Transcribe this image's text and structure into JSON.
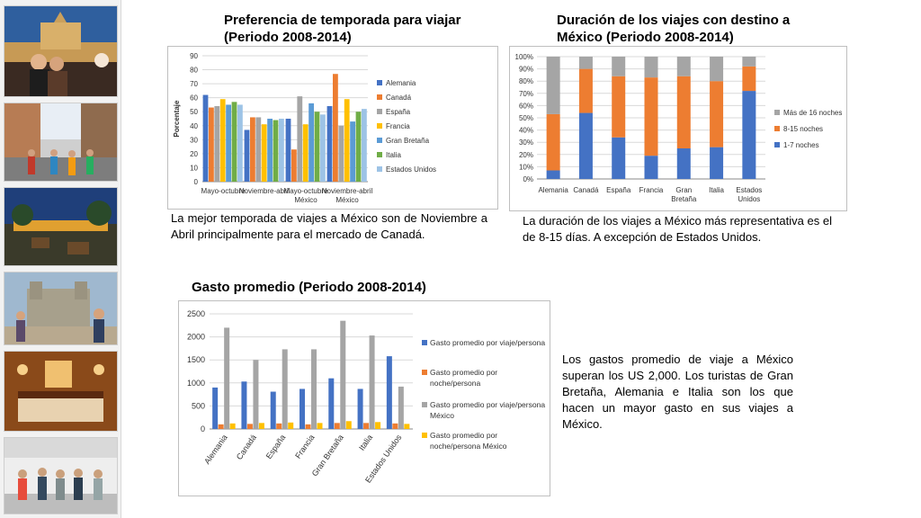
{
  "titles": {
    "season": [
      "Preferencia de temporada para viajar",
      "(Periodo 2008-2014)"
    ],
    "duration": [
      "Duración de los viajes con destino a",
      "México (Periodo 2008-2014)"
    ],
    "spend": "Gasto promedio (Periodo 2008-2014)"
  },
  "texts": {
    "season": "La mejor temporada de viajes a México son de Noviembre a Abril principalmente para el mercado de Canadá.",
    "duration": "La duración de los viajes a México más representativa es el de 8-15 días. A excepción de Estados Unidos.",
    "spend": "Los gastos promedio de viaje a México superan los US 2,000. Los turistas de Gran Bretaña, Alemania e Italia son los que hacen un mayor gasto en sus viajes a México."
  },
  "photos": [
    "photo-rooftop-terrace",
    "photo-street-crowd",
    "photo-night-terrace",
    "photo-church-plaza",
    "photo-hotel-room",
    "photo-market-crowd"
  ],
  "chart_data": [
    {
      "type": "bar",
      "title": "",
      "ylabel": "Porcentaje",
      "ylim": [
        0,
        90
      ],
      "yticks": [
        0,
        10,
        20,
        30,
        40,
        50,
        60,
        70,
        80,
        90
      ],
      "grid": true,
      "legend": "right",
      "categories": [
        [
          "Mayo-octubre"
        ],
        [
          "Noviembre-abril"
        ],
        [
          "Mayo-octubre",
          "México"
        ],
        [
          "Noviembre-abril",
          "México"
        ]
      ],
      "series": [
        {
          "name": "Alemania",
          "color": "#4472c4",
          "values": [
            62,
            37,
            45,
            54
          ]
        },
        {
          "name": "Canadá",
          "color": "#ed7d31",
          "values": [
            53,
            46,
            23,
            77
          ]
        },
        {
          "name": "España",
          "color": "#a5a5a5",
          "values": [
            54,
            46,
            61,
            40
          ]
        },
        {
          "name": "Francia",
          "color": "#ffc000",
          "values": [
            59,
            41,
            41,
            59
          ]
        },
        {
          "name": "Gran Bretaña",
          "color": "#5b9bd5",
          "values": [
            55,
            45,
            56,
            43
          ]
        },
        {
          "name": "Italia",
          "color": "#70ad47",
          "values": [
            57,
            44,
            50,
            50
          ]
        },
        {
          "name": "Estados Unidos",
          "color": "#9dc3e6",
          "values": [
            55,
            45,
            48,
            52
          ]
        }
      ]
    },
    {
      "type": "bar",
      "stacked": true,
      "title": "",
      "ylim": [
        0,
        100
      ],
      "yticks": [
        "0%",
        "10%",
        "20%",
        "30%",
        "40%",
        "50%",
        "60%",
        "70%",
        "80%",
        "90%",
        "100%"
      ],
      "grid": true,
      "legend": "right",
      "categories": [
        [
          "Alemania"
        ],
        [
          "Canadá"
        ],
        [
          "España"
        ],
        [
          "Francia"
        ],
        [
          "Gran",
          "Bretaña"
        ],
        [
          "Italia"
        ],
        [
          "Estados",
          "Unidos"
        ]
      ],
      "series": [
        {
          "name": "1-7 noches",
          "color": "#4472c4",
          "values": [
            7,
            54,
            34,
            19,
            25,
            26,
            72
          ]
        },
        {
          "name": "8-15 noches",
          "color": "#ed7d31",
          "values": [
            46,
            36,
            50,
            64,
            59,
            54,
            20
          ]
        },
        {
          "name": "Más de 16 noches",
          "color": "#a5a5a5",
          "values": [
            47,
            10,
            16,
            17,
            16,
            20,
            8
          ]
        }
      ]
    },
    {
      "type": "bar",
      "title": "",
      "ylim": [
        0,
        2500
      ],
      "yticks": [
        0,
        500,
        1000,
        1500,
        2000,
        2500
      ],
      "grid": true,
      "legend": "right",
      "categories": [
        "Alemania",
        "Canadá",
        "España",
        "Francia",
        "Gran Bretaña",
        "Italia",
        "Estados Unidos"
      ],
      "series": [
        {
          "name": "Gasto promedio por viaje/persona",
          "color": "#4472c4",
          "values": [
            900,
            1030,
            810,
            870,
            1100,
            870,
            1580
          ]
        },
        {
          "name": "Gasto promedio por noche/persona",
          "color": "#ed7d31",
          "values": [
            100,
            110,
            120,
            100,
            130,
            130,
            120
          ]
        },
        {
          "name": "Gasto promedio por viaje/persona México",
          "color": "#a5a5a5",
          "values": [
            2200,
            1500,
            1730,
            1730,
            2350,
            2030,
            920
          ]
        },
        {
          "name": "Gasto promedio por noche/persona México",
          "color": "#ffc000",
          "values": [
            120,
            130,
            140,
            130,
            170,
            150,
            110
          ]
        }
      ]
    }
  ]
}
